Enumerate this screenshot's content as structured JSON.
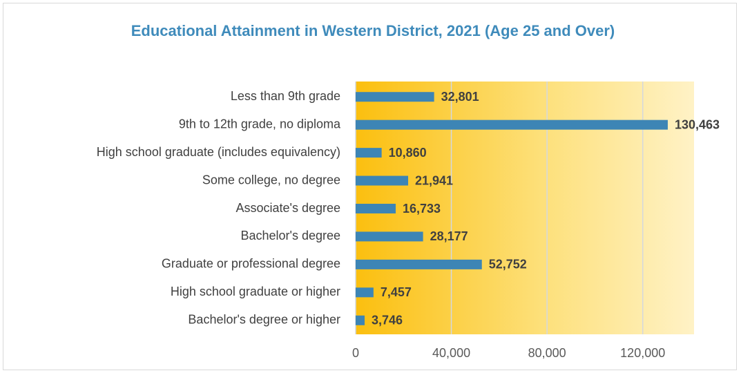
{
  "chart_data": {
    "type": "bar",
    "orientation": "horizontal",
    "title": "Educational Attainment in Western District, 2021 (Age 25 and Over)",
    "categories": [
      "Less than 9th grade",
      "9th to 12th grade, no diploma",
      "High school graduate (includes equivalency)",
      "Some college, no degree",
      "Associate's degree",
      "Bachelor's degree",
      "Graduate or professional degree",
      "High school graduate or higher",
      "Bachelor's degree or higher"
    ],
    "values": [
      32801,
      130463,
      10860,
      21941,
      16733,
      28177,
      52752,
      7457,
      3746
    ],
    "value_labels": [
      "32,801",
      "130,463",
      "10,860",
      "21,941",
      "16,733",
      "28,177",
      "52,752",
      "7,457",
      "3,746"
    ],
    "color": "#3d85b5",
    "xlim": [
      0,
      140000
    ],
    "xticks": [
      0,
      {
        "value": 40000,
        "label": "40,000"
      },
      {
        "value": 80000,
        "label": "80,000"
      },
      {
        "value": 120000,
        "label": "120,000"
      }
    ],
    "grid": true
  }
}
